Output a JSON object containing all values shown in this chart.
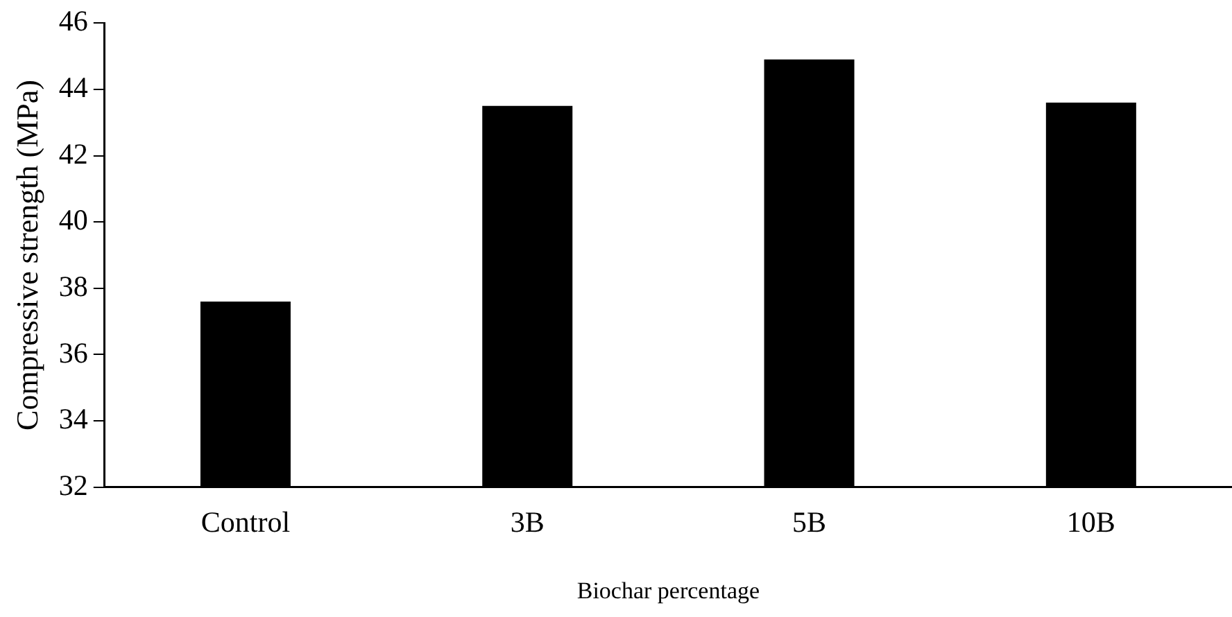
{
  "chart_data": {
    "type": "bar",
    "xlabel": "Biochar percentage",
    "ylabel": "Compressive strength (MPa)",
    "categories": [
      "Control",
      "3B",
      "5B",
      "10B"
    ],
    "values": [
      37.6,
      43.5,
      44.9,
      43.6
    ],
    "color": "#000000",
    "ylim": [
      32,
      46
    ],
    "yticks": [
      32,
      34,
      36,
      38,
      40,
      42,
      44,
      46
    ],
    "grid": false,
    "legend": false
  }
}
